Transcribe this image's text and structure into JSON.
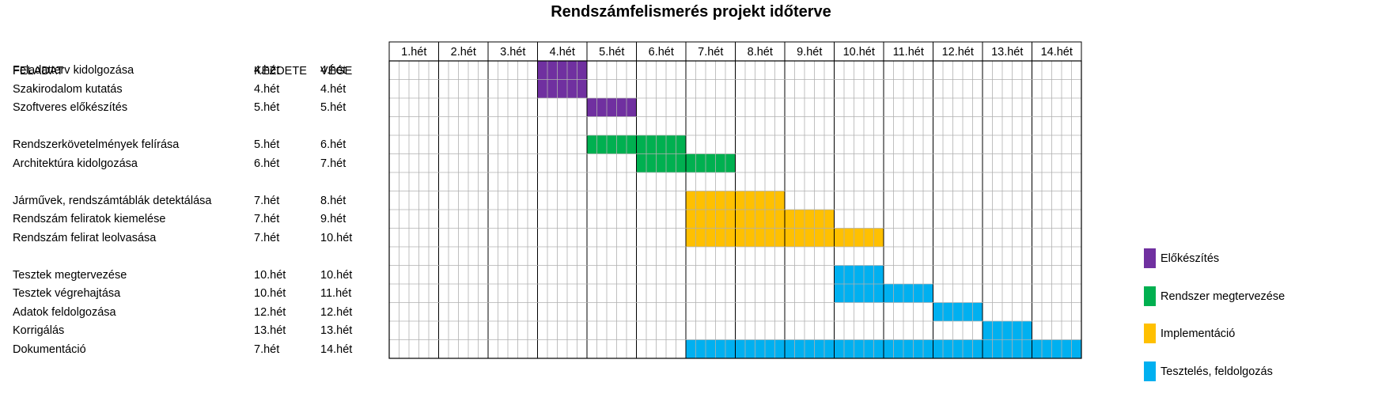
{
  "chart_data": {
    "type": "gantt",
    "title": "Rendszámfelismerés projekt időterve",
    "columns": {
      "task": "FELADAT",
      "start": "KEZDETE",
      "end": "VÉGE"
    },
    "weeks": [
      "1.hét",
      "2.hét",
      "3.hét",
      "4.hét",
      "5.hét",
      "6.hét",
      "7.hét",
      "8.hét",
      "9.hét",
      "10.hét",
      "11.hét",
      "12.hét",
      "13.hét",
      "14.hét"
    ],
    "subdivisions_per_week": 5,
    "rows": [
      {
        "task": "Feladatterv kidolgozása",
        "start": "4.hét",
        "end": "4.hét",
        "start_week": 4,
        "end_week": 4,
        "phase": 0
      },
      {
        "task": "Szakirodalom  kutatás",
        "start": "4.hét",
        "end": "4.hét",
        "start_week": 4,
        "end_week": 4,
        "phase": 0
      },
      {
        "task": "Szoftveres előkészítés",
        "start": "5.hét",
        "end": "5.hét",
        "start_week": 5,
        "end_week": 5,
        "phase": 0
      },
      {
        "task": "",
        "start": "",
        "end": "",
        "start_week": null,
        "end_week": null,
        "phase": null
      },
      {
        "task": "Rendszerkövetelmények felírása",
        "start": "5.hét",
        "end": "6.hét",
        "start_week": 5,
        "end_week": 6,
        "phase": 1
      },
      {
        "task": "Architektúra kidolgozása",
        "start": "6.hét",
        "end": "7.hét",
        "start_week": 6,
        "end_week": 7,
        "phase": 1
      },
      {
        "task": "",
        "start": "",
        "end": "",
        "start_week": null,
        "end_week": null,
        "phase": null
      },
      {
        "task": "Járművek, rendszámtáblák detektálása",
        "start": "7.hét",
        "end": "8.hét",
        "start_week": 7,
        "end_week": 8,
        "phase": 2
      },
      {
        "task": "Rendszám feliratok kiemelése",
        "start": "7.hét",
        "end": "9.hét",
        "start_week": 7,
        "end_week": 9,
        "phase": 2
      },
      {
        "task": "Rendszám felirat leolvasása",
        "start": "7.hét",
        "end": "10.hét",
        "start_week": 7,
        "end_week": 10,
        "phase": 2
      },
      {
        "task": "",
        "start": "",
        "end": "",
        "start_week": null,
        "end_week": null,
        "phase": null
      },
      {
        "task": "Tesztek megtervezése",
        "start": "10.hét",
        "end": "10.hét",
        "start_week": 10,
        "end_week": 10,
        "phase": 3
      },
      {
        "task": "Tesztek végrehajtása",
        "start": "10.hét",
        "end": "11.hét",
        "start_week": 10,
        "end_week": 11,
        "phase": 3
      },
      {
        "task": "Adatok feldolgozása",
        "start": "12.hét",
        "end": "12.hét",
        "start_week": 12,
        "end_week": 12,
        "phase": 3
      },
      {
        "task": "Korrigálás",
        "start": "13.hét",
        "end": "13.hét",
        "start_week": 13,
        "end_week": 13,
        "phase": 3
      },
      {
        "task": "Dokumentáció",
        "start": "7.hét",
        "end": "14.hét",
        "start_week": 7,
        "end_week": 14,
        "phase": 3
      }
    ],
    "legend": [
      {
        "label": "Előkészítés",
        "color": "#7030A0"
      },
      {
        "label": "Rendszer megtervezése",
        "color": "#00B050"
      },
      {
        "label": "Implementáció",
        "color": "#FFC000"
      },
      {
        "label": "Tesztelés, feldolgozás",
        "color": "#00B0F0"
      }
    ],
    "legend_position": "right",
    "grid": true
  }
}
